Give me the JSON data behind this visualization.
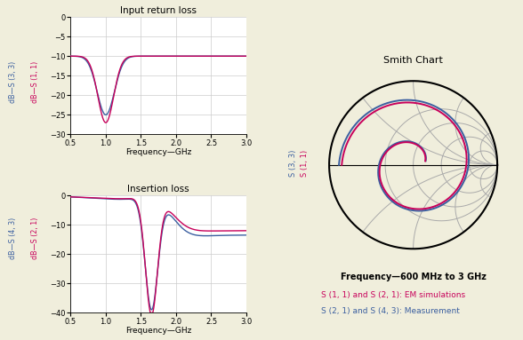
{
  "bg_color": "#f0eedc",
  "plot_bg_color": "#ffffff",
  "title_input": "Input return loss",
  "title_insertion": "Insertion loss",
  "title_smith": "Smith Chart",
  "smith_freq_label": "Frequency—600 MHz to 3 GHz",
  "legend1": "S (1, 1) and S (2, 1): EM simulations",
  "legend2": "S (2, 1) and S (4, 3): Measurement",
  "color_red": "#c8005a",
  "color_blue": "#3b5fa0",
  "color_gray": "#aaaaaa",
  "freq_label": "Frequency—GHz",
  "grid_color": "#cccccc",
  "smith_grid_color": "#aaaaaa"
}
